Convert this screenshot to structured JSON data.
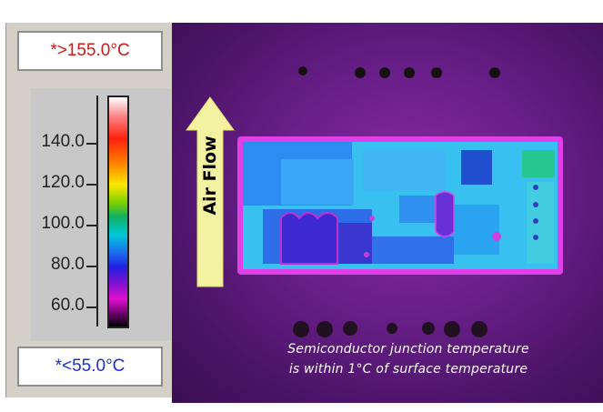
{
  "scale": {
    "max_label": "*>155.0°C",
    "min_label": "*<55.0°C",
    "ticks": [
      "140.0",
      "120.0",
      "100.0",
      "80.0",
      "60.0"
    ]
  },
  "thermal": {
    "arrow_label": "Air Flow",
    "caption_line1": "Semiconductor junction temperature",
    "caption_line2": "is within 1°C of surface temperature"
  },
  "colors": {
    "max_text": "#d01818",
    "min_text": "#1a2fd0",
    "arrow_fill": "#f2f2a0",
    "board_background": "#5a1a7a"
  }
}
